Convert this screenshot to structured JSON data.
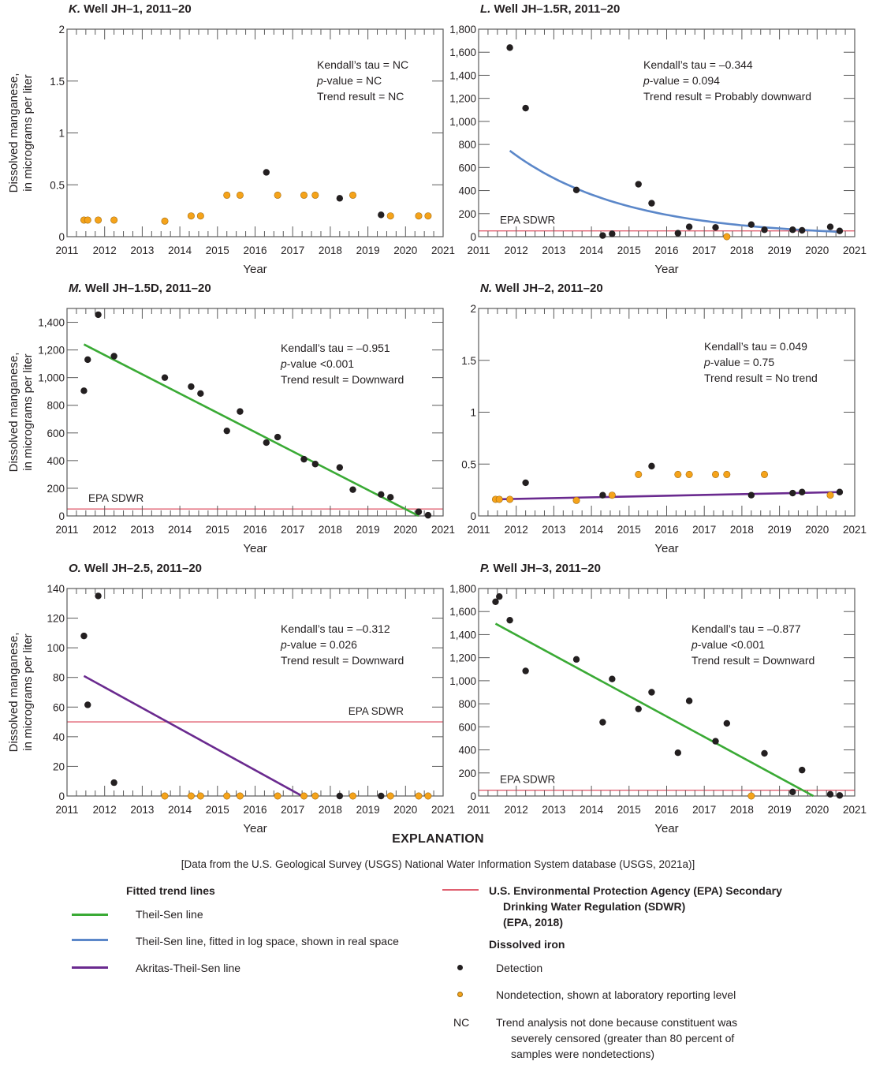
{
  "chart_data": [
    {
      "panel": "K",
      "type": "scatter",
      "title_letter": "K.",
      "title": "Well JH–1, 2011–20",
      "xlabel": "Year",
      "ylabel": [
        "Dissolved manganese,",
        "in micrograms per liter"
      ],
      "xlim": [
        2011,
        2021
      ],
      "ylim": [
        0,
        2
      ],
      "xticks": [
        "2011",
        "2012",
        "2013",
        "2014",
        "2015",
        "2016",
        "2017",
        "2018",
        "2019",
        "2020",
        "2021"
      ],
      "yticks": [
        {
          "v": 0,
          "label": "0"
        },
        {
          "v": 0.5,
          "label": "0.5"
        },
        {
          "v": 1,
          "label": "1"
        },
        {
          "v": 1.5,
          "label": "1.5"
        },
        {
          "v": 2,
          "label": "2"
        }
      ],
      "stats": [
        "Kendall’s tau = NC",
        "p-value = NC",
        "Trend result = NC"
      ],
      "epa_sdwr": null,
      "detections": [
        [
          2016.3,
          0.62
        ],
        [
          2018.25,
          0.37
        ],
        [
          2019.35,
          0.21
        ]
      ],
      "nondetections": [
        [
          2011.45,
          0.16
        ],
        [
          2011.55,
          0.16
        ],
        [
          2011.83,
          0.16
        ],
        [
          2012.25,
          0.16
        ],
        [
          2013.6,
          0.15
        ],
        [
          2014.3,
          0.2
        ],
        [
          2014.55,
          0.2
        ],
        [
          2015.25,
          0.4
        ],
        [
          2015.6,
          0.4
        ],
        [
          2016.6,
          0.4
        ],
        [
          2017.3,
          0.4
        ],
        [
          2017.6,
          0.4
        ],
        [
          2018.6,
          0.4
        ],
        [
          2019.6,
          0.2
        ],
        [
          2020.35,
          0.2
        ],
        [
          2020.6,
          0.2
        ]
      ],
      "trend": null
    },
    {
      "panel": "L",
      "type": "scatter",
      "title_letter": "L.",
      "title": "Well JH–1.5R, 2011–20",
      "xlabel": "Year",
      "ylabel": null,
      "xlim": [
        2011,
        2021
      ],
      "ylim": [
        0,
        1800
      ],
      "xticks": [
        "2011",
        "2012",
        "2013",
        "2014",
        "2015",
        "2016",
        "2017",
        "2018",
        "2019",
        "2020",
        "2021"
      ],
      "yticks": [
        {
          "v": 0,
          "label": "0"
        },
        {
          "v": 200,
          "label": "200"
        },
        {
          "v": 400,
          "label": "400"
        },
        {
          "v": 600,
          "label": "600"
        },
        {
          "v": 800,
          "label": "800"
        },
        {
          "v": 1000,
          "label": "1,000"
        },
        {
          "v": 1200,
          "label": "1,200"
        },
        {
          "v": 1400,
          "label": "1,400"
        },
        {
          "v": 1600,
          "label": "1,600"
        },
        {
          "v": 1800,
          "label": "1,800"
        }
      ],
      "stats": [
        "Kendall’s tau = –0.344",
        "p-value = 0.094",
        "Trend result = Probably downward"
      ],
      "epa_sdwr": {
        "value": 50,
        "label": "EPA SDWR",
        "label_side": "left-above"
      },
      "detections": [
        [
          2011.83,
          1640
        ],
        [
          2012.25,
          1115
        ],
        [
          2013.6,
          405
        ],
        [
          2014.3,
          10
        ],
        [
          2014.55,
          25
        ],
        [
          2015.25,
          455
        ],
        [
          2015.6,
          290
        ],
        [
          2016.3,
          30
        ],
        [
          2016.6,
          85
        ],
        [
          2017.3,
          80
        ],
        [
          2018.25,
          105
        ],
        [
          2018.6,
          60
        ],
        [
          2019.35,
          60
        ],
        [
          2019.6,
          55
        ],
        [
          2020.35,
          85
        ],
        [
          2020.6,
          50
        ]
      ],
      "nondetections": [
        [
          2017.6,
          0
        ]
      ],
      "trend": {
        "kind": "log-theil-sen",
        "name": "Theil-Sen line, fitted in log space, shown in real space",
        "x0": 2011.83,
        "y0": 745,
        "x1": 2020.6,
        "y1": 42
      }
    },
    {
      "panel": "M",
      "type": "scatter",
      "title_letter": "M.",
      "title": "Well JH–1.5D, 2011–20",
      "xlabel": "Year",
      "ylabel": [
        "Dissolved manganese,",
        "in micrograms per liter"
      ],
      "xlim": [
        2011,
        2021
      ],
      "ylim": [
        0,
        1500
      ],
      "xticks": [
        "2011",
        "2012",
        "2013",
        "2014",
        "2015",
        "2016",
        "2017",
        "2018",
        "2019",
        "2020",
        "2021"
      ],
      "yticks": [
        {
          "v": 0,
          "label": "0"
        },
        {
          "v": 200,
          "label": "200"
        },
        {
          "v": 400,
          "label": "400"
        },
        {
          "v": 600,
          "label": "600"
        },
        {
          "v": 800,
          "label": "800"
        },
        {
          "v": 1000,
          "label": "1,000"
        },
        {
          "v": 1200,
          "label": "1,200"
        },
        {
          "v": 1400,
          "label": "1,400"
        }
      ],
      "stats": [
        "Kendall’s tau = –0.951",
        "p-value <0.001",
        "Trend result = Downward"
      ],
      "epa_sdwr": {
        "value": 50,
        "label": "EPA SDWR",
        "label_side": "left-above"
      },
      "detections": [
        [
          2011.45,
          905
        ],
        [
          2011.55,
          1130
        ],
        [
          2011.83,
          1455
        ],
        [
          2012.25,
          1155
        ],
        [
          2013.6,
          1000
        ],
        [
          2014.3,
          935
        ],
        [
          2014.55,
          885
        ],
        [
          2015.25,
          615
        ],
        [
          2015.6,
          755
        ],
        [
          2016.3,
          530
        ],
        [
          2016.6,
          570
        ],
        [
          2017.3,
          410
        ],
        [
          2017.6,
          375
        ],
        [
          2018.25,
          350
        ],
        [
          2018.6,
          190
        ],
        [
          2019.35,
          155
        ],
        [
          2019.6,
          135
        ],
        [
          2020.35,
          30
        ],
        [
          2020.6,
          5
        ]
      ],
      "nondetections": [],
      "trend": {
        "kind": "theil-sen",
        "name": "Theil-Sen line",
        "x0": 2011.45,
        "y0": 1240,
        "x1": 2020.35,
        "y1": 0
      }
    },
    {
      "panel": "N",
      "type": "scatter",
      "title_letter": "N.",
      "title": "Well JH–2, 2011–20",
      "xlabel": "Year",
      "ylabel": null,
      "xlim": [
        2011,
        2021
      ],
      "ylim": [
        0,
        2
      ],
      "xticks": [
        "2011",
        "2012",
        "2013",
        "2014",
        "2015",
        "2016",
        "2017",
        "2018",
        "2019",
        "2020",
        "2021"
      ],
      "yticks": [
        {
          "v": 0,
          "label": "0"
        },
        {
          "v": 0.5,
          "label": "0.5"
        },
        {
          "v": 1,
          "label": "1"
        },
        {
          "v": 1.5,
          "label": "1.5"
        },
        {
          "v": 2,
          "label": "2"
        }
      ],
      "stats": [
        "Kendall’s tau = 0.049",
        "p-value = 0.75",
        "Trend result = No trend"
      ],
      "epa_sdwr": null,
      "detections": [
        [
          2012.25,
          0.32
        ],
        [
          2014.3,
          0.2
        ],
        [
          2015.6,
          0.48
        ],
        [
          2018.25,
          0.2
        ],
        [
          2019.35,
          0.22
        ],
        [
          2019.6,
          0.23
        ],
        [
          2020.6,
          0.23
        ]
      ],
      "nondetections": [
        [
          2011.45,
          0.16
        ],
        [
          2011.55,
          0.16
        ],
        [
          2011.83,
          0.16
        ],
        [
          2013.6,
          0.15
        ],
        [
          2014.55,
          0.2
        ],
        [
          2015.25,
          0.4
        ],
        [
          2016.3,
          0.4
        ],
        [
          2016.6,
          0.4
        ],
        [
          2017.3,
          0.4
        ],
        [
          2017.6,
          0.4
        ],
        [
          2018.6,
          0.4
        ],
        [
          2020.35,
          0.2
        ]
      ],
      "trend": {
        "kind": "akritas",
        "name": "Akritas-Theil-Sen line",
        "x0": 2011.45,
        "y0": 0.16,
        "x1": 2020.6,
        "y1": 0.23
      }
    },
    {
      "panel": "O",
      "type": "scatter",
      "title_letter": "O.",
      "title": "Well JH–2.5, 2011–20",
      "xlabel": "Year",
      "ylabel": [
        "Dissolved manganese,",
        "in micrograms per liter"
      ],
      "xlim": [
        2011,
        2021
      ],
      "ylim": [
        0,
        140
      ],
      "xticks": [
        "2011",
        "2012",
        "2013",
        "2014",
        "2015",
        "2016",
        "2017",
        "2018",
        "2019",
        "2020",
        "2021"
      ],
      "yticks": [
        {
          "v": 0,
          "label": "0"
        },
        {
          "v": 20,
          "label": "20"
        },
        {
          "v": 40,
          "label": "40"
        },
        {
          "v": 60,
          "label": "60"
        },
        {
          "v": 80,
          "label": "80"
        },
        {
          "v": 100,
          "label": "100"
        },
        {
          "v": 120,
          "label": "120"
        },
        {
          "v": 140,
          "label": "140"
        }
      ],
      "stats": [
        "Kendall’s tau = –0.312",
        "p-value = 0.026",
        "Trend result = Downward"
      ],
      "epa_sdwr": {
        "value": 50,
        "label": "EPA SDWR",
        "label_side": "right-above"
      },
      "detections": [
        [
          2011.45,
          108
        ],
        [
          2011.55,
          61.5
        ],
        [
          2011.83,
          135
        ],
        [
          2012.25,
          9
        ],
        [
          2018.25,
          0
        ],
        [
          2019.35,
          0
        ]
      ],
      "nondetections": [
        [
          2013.6,
          0
        ],
        [
          2014.3,
          0
        ],
        [
          2014.55,
          0
        ],
        [
          2015.25,
          0
        ],
        [
          2015.6,
          0
        ],
        [
          2016.6,
          0
        ],
        [
          2017.3,
          0
        ],
        [
          2017.6,
          0
        ],
        [
          2018.6,
          0
        ],
        [
          2019.6,
          0
        ],
        [
          2020.35,
          0
        ],
        [
          2020.6,
          0
        ]
      ],
      "trend": {
        "kind": "akritas",
        "name": "Akritas-Theil-Sen line",
        "x0": 2011.45,
        "y0": 81,
        "x1": 2017.25,
        "y1": 0
      }
    },
    {
      "panel": "P",
      "type": "scatter",
      "title_letter": "P.",
      "title": "Well JH–3, 2011–20",
      "xlabel": "Year",
      "ylabel": null,
      "xlim": [
        2011,
        2021
      ],
      "ylim": [
        0,
        1800
      ],
      "xticks": [
        "2011",
        "2012",
        "2013",
        "2014",
        "2015",
        "2016",
        "2017",
        "2018",
        "2019",
        "2020",
        "2021"
      ],
      "yticks": [
        {
          "v": 0,
          "label": "0"
        },
        {
          "v": 200,
          "label": "200"
        },
        {
          "v": 400,
          "label": "400"
        },
        {
          "v": 600,
          "label": "600"
        },
        {
          "v": 800,
          "label": "800"
        },
        {
          "v": 1000,
          "label": "1,000"
        },
        {
          "v": 1200,
          "label": "1,200"
        },
        {
          "v": 1400,
          "label": "1,400"
        },
        {
          "v": 1600,
          "label": "1,600"
        },
        {
          "v": 1800,
          "label": "1,800"
        }
      ],
      "stats": [
        "Kendall’s tau = –0.877",
        "p-value <0.001",
        "Trend result = Downward"
      ],
      "epa_sdwr": {
        "value": 50,
        "label": "EPA SDWR",
        "label_side": "left-above"
      },
      "detections": [
        [
          2011.45,
          1685
        ],
        [
          2011.55,
          1730
        ],
        [
          2011.83,
          1525
        ],
        [
          2012.25,
          1085
        ],
        [
          2013.6,
          1185
        ],
        [
          2014.3,
          640
        ],
        [
          2014.55,
          1015
        ],
        [
          2015.25,
          755
        ],
        [
          2015.6,
          900
        ],
        [
          2016.3,
          375
        ],
        [
          2016.6,
          825
        ],
        [
          2017.3,
          475
        ],
        [
          2017.6,
          630
        ],
        [
          2018.6,
          370
        ],
        [
          2019.35,
          35
        ],
        [
          2019.6,
          225
        ],
        [
          2020.35,
          15
        ],
        [
          2020.6,
          5
        ]
      ],
      "nondetections": [
        [
          2018.25,
          0
        ]
      ],
      "trend": {
        "kind": "theil-sen",
        "name": "Theil-Sen line",
        "x0": 2011.45,
        "y0": 1495,
        "x1": 2019.9,
        "y1": 0
      }
    }
  ],
  "colors": {
    "theil_sen": "#3aaa35",
    "log_theil_sen": "#5b87c9",
    "akritas": "#6a2a8f",
    "epa_sdwr": "#e06070",
    "detection": "#231f20",
    "nondetection": "#f5a31a",
    "axis": "#5a5a5a"
  },
  "explanation": {
    "title": "EXPLANATION",
    "source": "[Data from the U.S. Geological Survey (USGS) National Water Information System database (USGS, 2021a)]",
    "trend_heading": "Fitted trend lines",
    "trend_items": [
      {
        "key": "theil_sen",
        "label": "Theil-Sen line"
      },
      {
        "key": "log_theil_sen",
        "label": "Theil-Sen line, fitted in log space, shown in real space"
      },
      {
        "key": "akritas",
        "label": "Akritas-Theil-Sen line"
      }
    ],
    "epa_lines": [
      "U.S. Environmental Protection Agency (EPA) Secondary",
      "Drinking Water Regulation (SDWR)",
      "(EPA, 2018)"
    ],
    "iron_heading": "Dissolved iron",
    "detection_label": "Detection",
    "nondetection_label": "Nondetection, shown at laboratory reporting level",
    "nc_symbol": "NC",
    "nc_lines": [
      "Trend analysis not done because constituent was",
      "severely censored (greater than 80 percent of",
      "samples were nondetections)"
    ]
  }
}
